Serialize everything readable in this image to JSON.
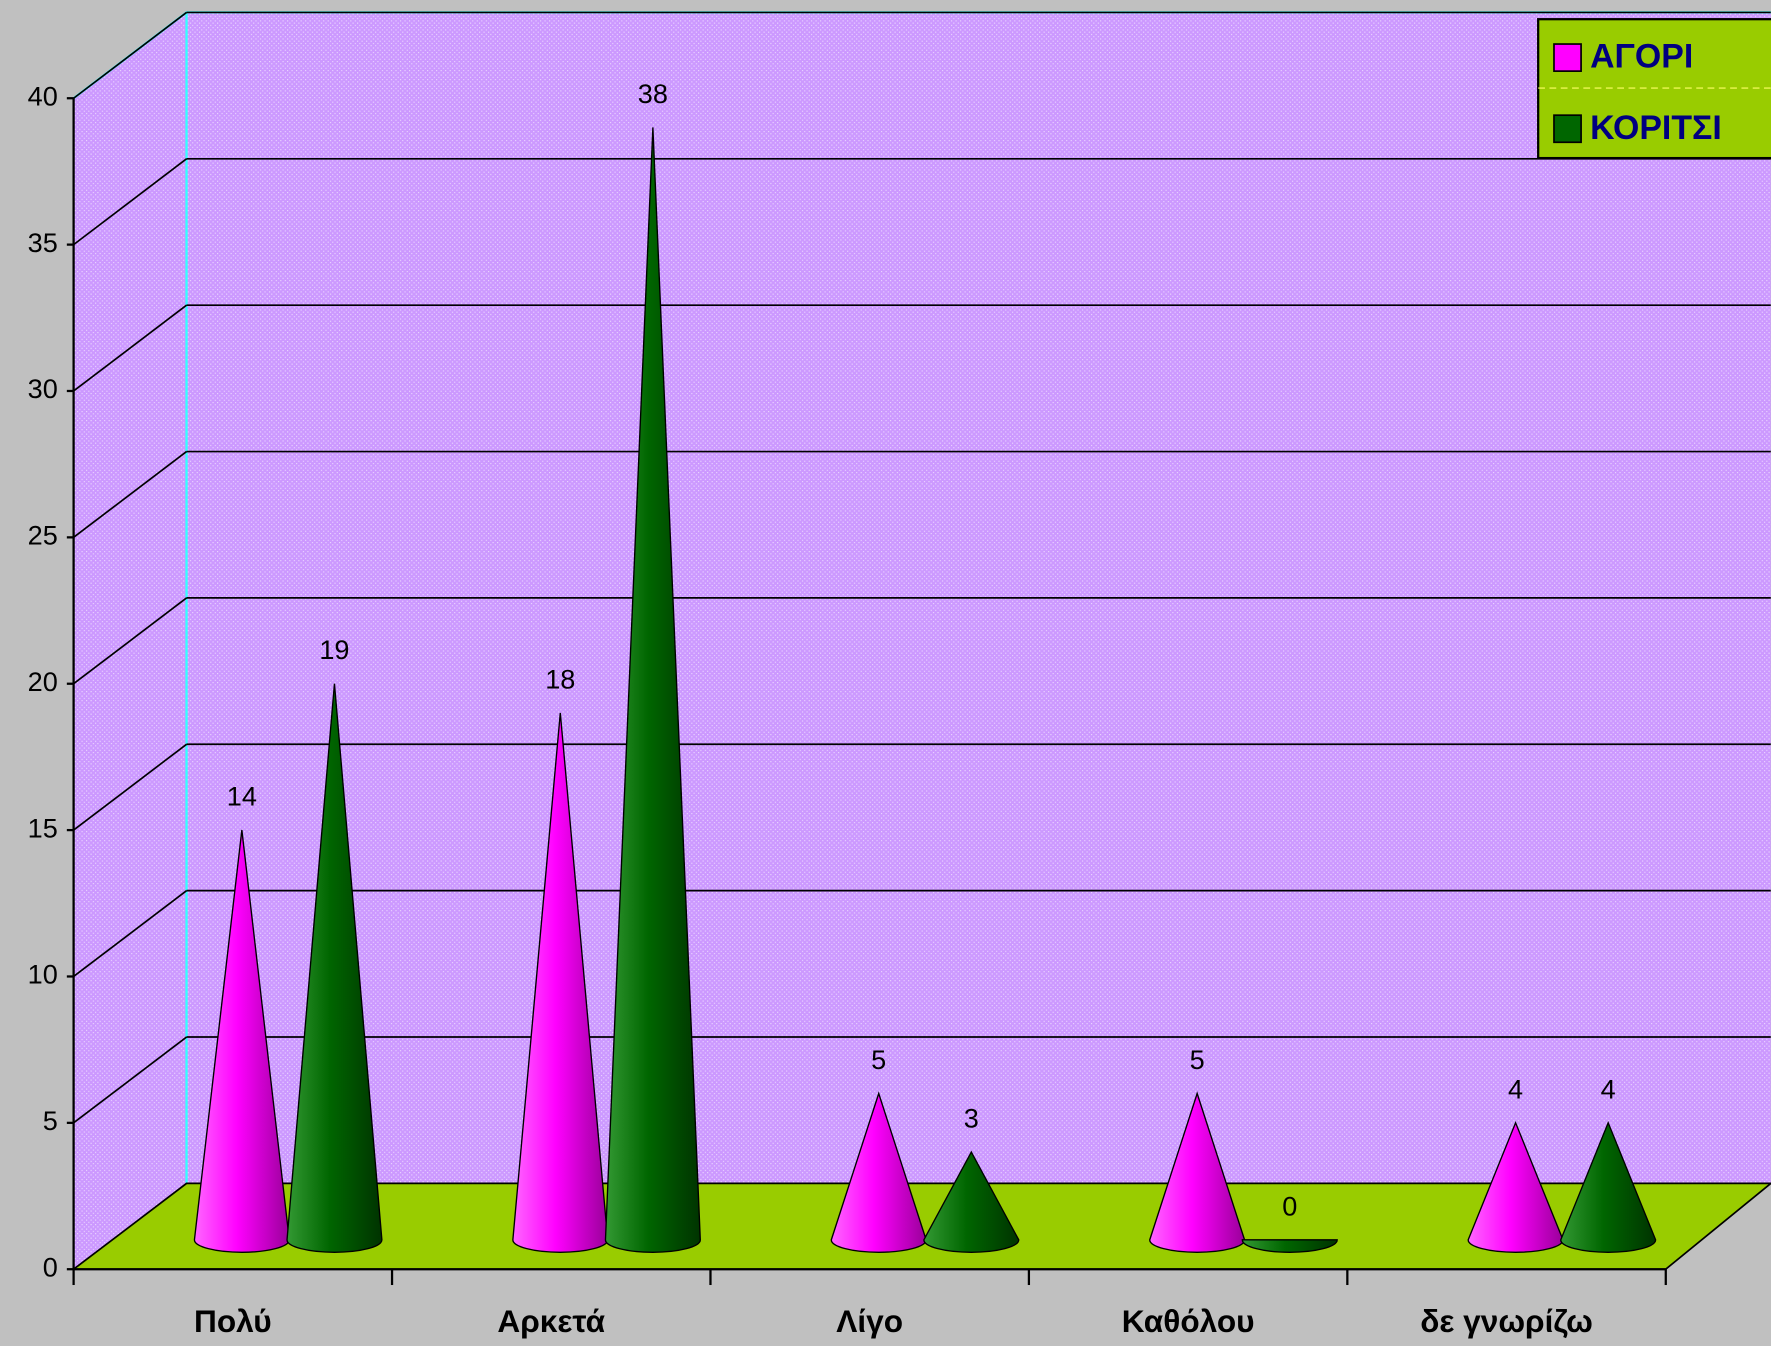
{
  "chart_data": {
    "type": "cone3d",
    "categories": [
      "Πολύ",
      "Αρκετά",
      "Λίγο",
      "Καθόλου",
      "δε γνωρίζω"
    ],
    "series": [
      {
        "name": "ΑΓΟΡΙ",
        "color": "#ff00ff",
        "values": [
          14,
          18,
          5,
          5,
          4
        ]
      },
      {
        "name": "ΚΟΡΙΤΣΙ",
        "color": "#006600",
        "values": [
          19,
          38,
          3,
          0,
          4
        ]
      }
    ],
    "ylim": [
      0,
      40
    ],
    "yticks": [
      0,
      5,
      10,
      15,
      20,
      25,
      30,
      35,
      40
    ],
    "grid": true,
    "legend": "top-right",
    "data_labels": true
  }
}
